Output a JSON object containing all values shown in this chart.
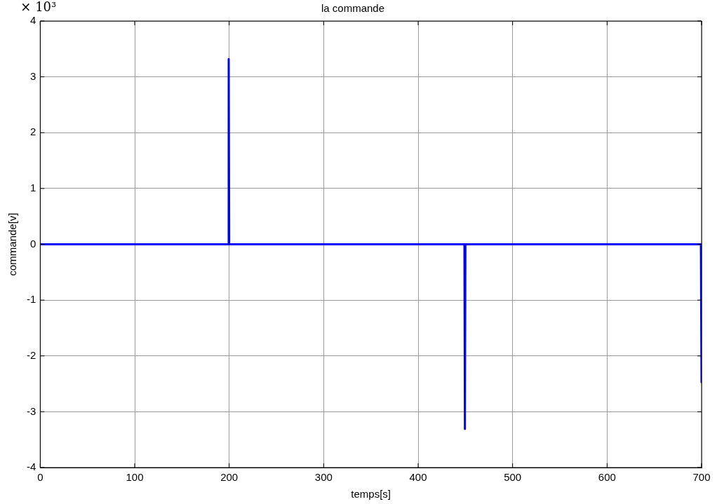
{
  "chart_data": {
    "type": "line",
    "title": "la commande",
    "xlabel": "temps[s]",
    "ylabel": "commande[v]",
    "annotations": [
      "× 10³"
    ],
    "x": [
      0,
      199,
      199.5,
      200,
      449,
      449.5,
      450,
      699.3,
      700
    ],
    "series": [
      {
        "color": "#0000ff",
        "values": [
          0,
          0,
          3.32,
          0,
          0,
          -3.31,
          0,
          0,
          -2.47
        ]
      }
    ],
    "xlim": [
      0,
      700
    ],
    "xticks": [
      0,
      100,
      200,
      300,
      400,
      500,
      600,
      700
    ],
    "ylim": [
      -4,
      4
    ],
    "yticks": [
      -4,
      -3,
      -2,
      -1,
      0,
      1,
      2,
      3,
      4
    ],
    "grid": true,
    "legend": false,
    "marker": "none",
    "line_style": "solid"
  }
}
